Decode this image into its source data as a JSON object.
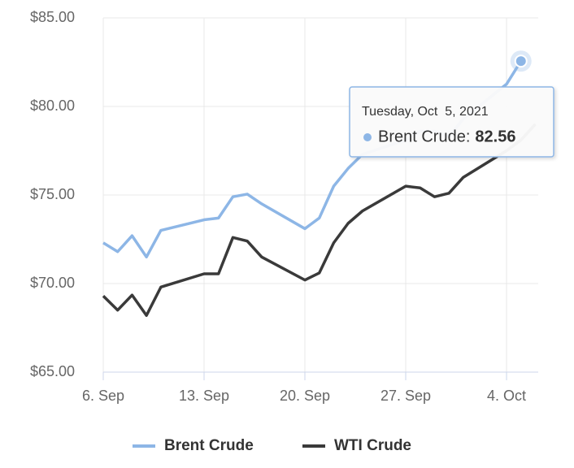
{
  "chart_data": {
    "type": "line",
    "x": [
      6,
      7,
      8,
      9,
      10,
      13,
      14,
      15,
      16,
      17,
      20,
      21,
      22,
      23,
      24,
      27,
      28,
      29,
      30,
      31,
      34,
      35,
      36
    ],
    "xlim": [
      6,
      36.2
    ],
    "xticks": [
      {
        "value": 6,
        "label": "6. Sep"
      },
      {
        "value": 13,
        "label": "13. Sep"
      },
      {
        "value": 20,
        "label": "20. Sep"
      },
      {
        "value": 27,
        "label": "27. Sep"
      },
      {
        "value": 34,
        "label": "4. Oct"
      }
    ],
    "ylim": [
      65,
      85
    ],
    "yticks": [
      {
        "value": 65,
        "label": "$65.00"
      },
      {
        "value": 70,
        "label": "$70.00"
      },
      {
        "value": 75,
        "label": "$75.00"
      },
      {
        "value": 80,
        "label": "$80.00"
      },
      {
        "value": 85,
        "label": "$85.00"
      }
    ],
    "grid": true,
    "legend": "bottom",
    "series": [
      {
        "name": "Brent Crude",
        "color": "#8db6e6",
        "values": [
          72.3,
          71.8,
          72.7,
          71.5,
          73.0,
          73.6,
          73.7,
          74.9,
          75.05,
          74.5,
          73.1,
          73.7,
          75.5,
          76.5,
          77.3,
          78.1,
          78.6,
          78.6,
          78.3,
          79.3,
          81.26,
          82.56,
          null
        ]
      },
      {
        "name": "WTI Crude",
        "color": "#3a3a3a",
        "values": [
          69.3,
          68.5,
          69.35,
          68.2,
          69.8,
          70.55,
          70.55,
          72.6,
          72.4,
          71.5,
          70.2,
          70.6,
          72.3,
          73.4,
          74.1,
          75.5,
          75.4,
          74.9,
          75.1,
          76.0,
          77.5,
          78.1,
          79.0
        ]
      }
    ],
    "tooltip": {
      "title": "Tuesday, Oct  5, 2021",
      "label": "Brent Crude:"
    }
  }
}
